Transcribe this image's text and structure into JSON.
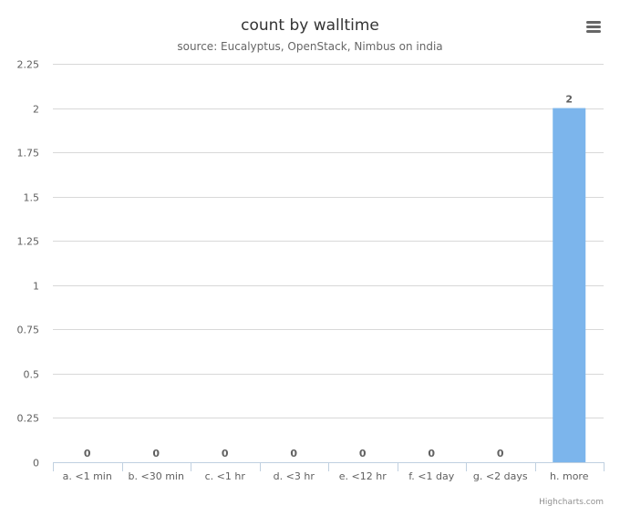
{
  "chart_data": {
    "type": "bar",
    "title": "count by walltime",
    "subtitle": "source: Eucalyptus, OpenStack, Nimbus on india",
    "categories": [
      "a. <1 min",
      "b. <30 min",
      "c. <1 hr",
      "d. <3 hr",
      "e. <12 hr",
      "f. <1 day",
      "g. <2 days",
      "h. more"
    ],
    "values": [
      0,
      0,
      0,
      0,
      0,
      0,
      0,
      2
    ],
    "yticks": [
      "0",
      "0.25",
      "0.5",
      "0.75",
      "1",
      "1.25",
      "1.5",
      "1.75",
      "2",
      "2.25"
    ],
    "ylim": [
      0,
      2.25
    ],
    "grid": true,
    "xlabel": "",
    "ylabel": ""
  },
  "colors": {
    "bar": "#7cb5ec",
    "grid": "#d8d8d8",
    "axis": "#c0d0e0"
  },
  "menu_icon": "hamburger-menu-icon",
  "credits": "Highcharts.com"
}
